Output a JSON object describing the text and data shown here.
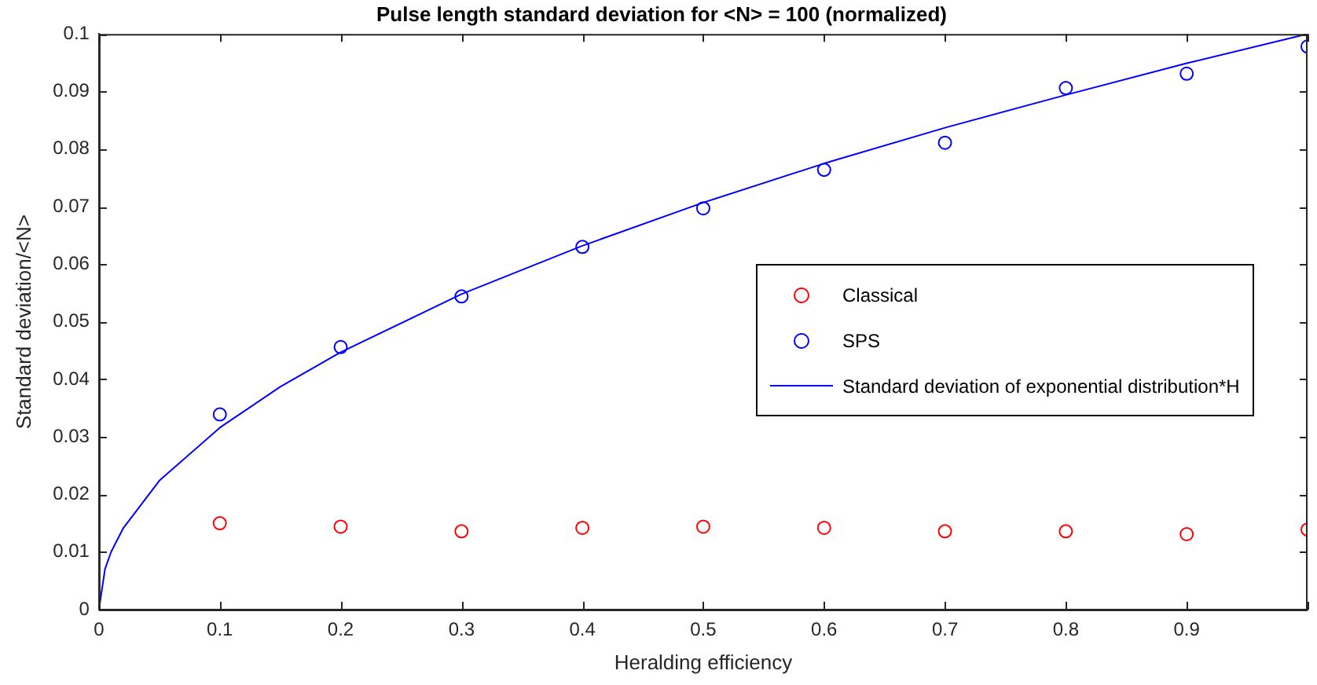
{
  "chart_data": {
    "type": "scatter",
    "title": "Pulse length standard deviation for <N> = 100 (normalized)",
    "xlabel": "Heralding efficiency",
    "ylabel": "Standard deviation/<N>",
    "x": [
      0.1,
      0.2,
      0.3,
      0.4,
      0.5,
      0.6,
      0.7,
      0.8,
      0.9,
      1.0
    ],
    "series": [
      {
        "name": "Classical",
        "color": "#ff0000",
        "type": "scatter",
        "values": [
          0.015,
          0.0144,
          0.0136,
          0.0142,
          0.0144,
          0.0142,
          0.0136,
          0.0136,
          0.0131,
          0.0139
        ]
      },
      {
        "name": "SPS",
        "color": "#0000ff",
        "type": "scatter",
        "values": [
          0.0339,
          0.0456,
          0.0544,
          0.063,
          0.0697,
          0.0764,
          0.0811,
          0.0906,
          0.0931,
          0.0978
        ]
      },
      {
        "name": "Standard deviation of exponential distribution*H",
        "color": "#0000ff",
        "type": "line",
        "marker": "none",
        "x": [
          0,
          0.005,
          0.01,
          0.02,
          0.05,
          0.1,
          0.15,
          0.2,
          0.3,
          0.4,
          0.5,
          0.6,
          0.7,
          0.8,
          0.9,
          1.0
        ],
        "values": [
          0,
          0.007,
          0.01,
          0.0141,
          0.0224,
          0.0316,
          0.0387,
          0.0447,
          0.0548,
          0.0632,
          0.0707,
          0.0775,
          0.0837,
          0.0894,
          0.0949,
          0.1
        ]
      }
    ],
    "marker": "circle",
    "legend": "right",
    "grid": false,
    "xlim": [
      0,
      1
    ],
    "xticks": [
      0,
      0.1,
      0.2,
      0.3,
      0.4,
      0.5,
      0.6,
      0.7,
      0.8,
      0.9,
      {
        "value": 1,
        "label": null
      }
    ],
    "ylim": [
      0,
      0.1
    ],
    "yticks": [
      0,
      0.01,
      0.02,
      0.03,
      0.04,
      0.05,
      0.06,
      0.07,
      0.08,
      0.09,
      0.1
    ]
  }
}
